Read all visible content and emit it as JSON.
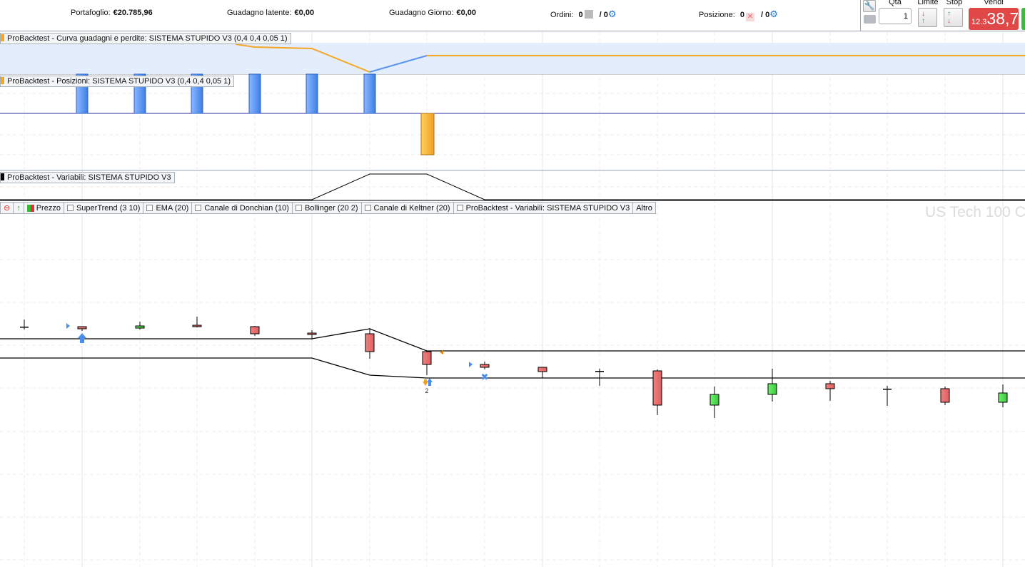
{
  "topbar": {
    "portfolio_label": "Portafoglio:",
    "portfolio_value": "€20.785,96",
    "latent_label": "Guadagno latente:",
    "latent_value": "€0,00",
    "day_label": "Guadagno Giorno:",
    "day_value": "€0,00",
    "orders_label": "Ordini:",
    "orders_count": "0",
    "orders_sep": "/ 0",
    "position_label": "Posizione:",
    "position_count": "0",
    "position_sep": "/ 0"
  },
  "toolbar": {
    "qty_label": "Qta",
    "qty_value": "1",
    "limit_label": "Limite",
    "stop_label": "Stop",
    "sell_label": "Vendi",
    "sell_price_small": "12.3",
    "sell_price_big": "38,7"
  },
  "panels": {
    "equity": "ProBacktest - Curva guadagni e perdite: SISTEMA STUPIDO V3 (0,4 0,4 0,05 1)",
    "positions": "ProBacktest - Posizioni: SISTEMA STUPIDO V3 (0,4 0,4 0,05 1)",
    "variables": "ProBacktest - Variabili: SISTEMA STUPIDO V3"
  },
  "indicators": [
    {
      "label": "Prezzo"
    },
    {
      "label": "SuperTrend (3 10)"
    },
    {
      "label": "EMA (20)"
    },
    {
      "label": "Canale di Donchian (10)"
    },
    {
      "label": "Bollinger (20 2)"
    },
    {
      "label": "Canale di Keltner (20)"
    },
    {
      "label": "ProBacktest - Variabili: SISTEMA STUPIDO V3"
    },
    {
      "label": "Altro"
    }
  ],
  "watermark": "US Tech 100 C",
  "trade_marker_count": "2",
  "colors": {
    "bull": "#4cd64c",
    "bear": "#e86a6a",
    "equity": "#f5a623",
    "position_long": "#4a8ef0",
    "position_short": "#f5a623",
    "sell": "#e04848"
  }
}
